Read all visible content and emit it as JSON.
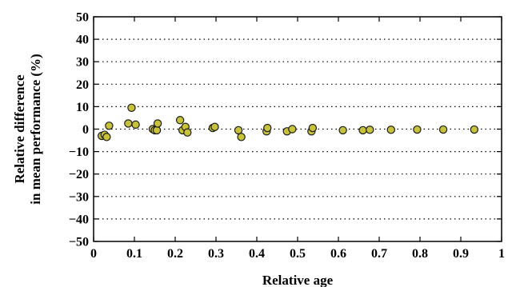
{
  "chart_data": {
    "type": "scatter",
    "title": "",
    "xlabel": "Relative age",
    "ylabel": [
      "Relative difference",
      "in mean performance (%)"
    ],
    "xlim": [
      0,
      1
    ],
    "ylim": [
      -50,
      50
    ],
    "x_ticks": [
      0,
      0.1,
      0.2,
      0.3,
      0.4,
      0.5,
      0.6,
      0.7,
      0.8,
      0.9,
      1
    ],
    "x_tick_labels": [
      "0",
      "0.1",
      "0.2",
      "0.3",
      "0.4",
      "0.5",
      "0.6",
      "0.7",
      "0.8",
      "0.9",
      "1"
    ],
    "y_ticks": [
      50,
      40,
      30,
      20,
      10,
      0,
      -10,
      -20,
      -30,
      -40,
      -50
    ],
    "y_tick_labels": [
      "50",
      "40",
      "30",
      "20",
      "10",
      "0",
      "−10",
      "−20",
      "−30",
      "−40",
      "−50"
    ],
    "grid": "horizontal-dotted",
    "marker_color": "#c8c23a",
    "marker_edge": "#1a1a1a",
    "x": [
      0.02,
      0.027,
      0.032,
      0.038,
      0.085,
      0.093,
      0.103,
      0.145,
      0.15,
      0.155,
      0.157,
      0.212,
      0.218,
      0.225,
      0.23,
      0.292,
      0.297,
      0.355,
      0.362,
      0.424,
      0.426,
      0.474,
      0.487,
      0.534,
      0.537,
      0.611,
      0.66,
      0.677,
      0.729,
      0.793,
      0.857,
      0.933
    ],
    "y": [
      -3.0,
      -2.5,
      -3.5,
      1.5,
      2.5,
      9.5,
      2.0,
      0.0,
      -0.5,
      -0.5,
      2.5,
      4.0,
      -0.5,
      1.0,
      -1.5,
      0.5,
      1.0,
      -0.5,
      -3.5,
      -1.0,
      0.5,
      -1.0,
      0.0,
      -1.0,
      0.5,
      -0.5,
      -0.5,
      -0.3,
      -0.3,
      -0.2,
      -0.2,
      -0.2
    ]
  }
}
